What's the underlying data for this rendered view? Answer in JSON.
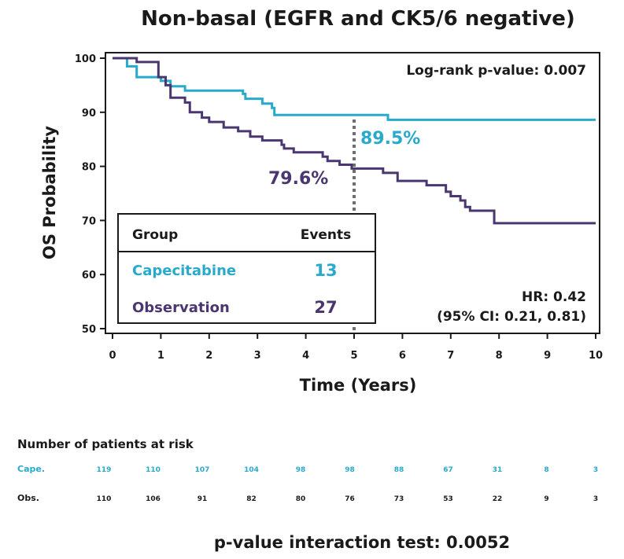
{
  "chart_data": {
    "type": "line",
    "title": "Non-basal (EGFR and CK5/6 negative)",
    "xlabel": "Time (Years)",
    "ylabel": "OS Probability",
    "xlim": [
      0,
      10
    ],
    "ylim": [
      49,
      101
    ],
    "xticks": [
      "0",
      "1",
      "2",
      "3",
      "4",
      "5",
      "6",
      "7",
      "8",
      "9",
      "10"
    ],
    "yticks": [
      "100",
      "90",
      "80",
      "70",
      "60",
      "50"
    ],
    "logrank": "Log-rank p-value: 0.007",
    "hr_line1": "HR: 0.42",
    "hr_line2": "(95% CI: 0.21, 0.81)",
    "reference_x": 5,
    "series": [
      {
        "name": "Capecitabine",
        "color": "#29a9cc",
        "annotation": "89.5%",
        "points": [
          [
            0,
            100
          ],
          [
            0.3,
            98.5
          ],
          [
            0.5,
            96.5
          ],
          [
            1.0,
            95.8
          ],
          [
            1.2,
            94.8
          ],
          [
            1.5,
            94.0
          ],
          [
            2.7,
            93.4
          ],
          [
            2.75,
            92.5
          ],
          [
            3.1,
            91.6
          ],
          [
            3.3,
            90.8
          ],
          [
            3.35,
            89.5
          ],
          [
            5.7,
            88.6
          ],
          [
            10,
            88.6
          ]
        ]
      },
      {
        "name": "Observation",
        "color": "#4a3670",
        "annotation": "79.6%",
        "points": [
          [
            0,
            100
          ],
          [
            0.5,
            99.3
          ],
          [
            0.95,
            96.5
          ],
          [
            1.1,
            95.0
          ],
          [
            1.2,
            92.7
          ],
          [
            1.5,
            91.8
          ],
          [
            1.6,
            90.0
          ],
          [
            1.85,
            89.0
          ],
          [
            2.0,
            88.2
          ],
          [
            2.3,
            87.2
          ],
          [
            2.6,
            86.5
          ],
          [
            2.85,
            85.5
          ],
          [
            3.1,
            84.8
          ],
          [
            3.5,
            84.0
          ],
          [
            3.55,
            83.3
          ],
          [
            3.75,
            82.6
          ],
          [
            4.35,
            81.8
          ],
          [
            4.45,
            81.0
          ],
          [
            4.7,
            80.3
          ],
          [
            4.95,
            79.6
          ],
          [
            5.6,
            78.8
          ],
          [
            5.9,
            77.3
          ],
          [
            6.5,
            76.5
          ],
          [
            6.9,
            75.3
          ],
          [
            7.0,
            74.5
          ],
          [
            7.2,
            73.7
          ],
          [
            7.3,
            72.5
          ],
          [
            7.4,
            71.8
          ],
          [
            7.9,
            69.5
          ],
          [
            10,
            69.5
          ]
        ]
      }
    ]
  },
  "legend": {
    "header_group": "Group",
    "header_events": "Events",
    "rows": [
      {
        "name": "Capecitabine",
        "events": "13",
        "color": "#29a9cc"
      },
      {
        "name": "Observation",
        "events": "27",
        "color": "#4a3670"
      }
    ]
  },
  "risk_table": {
    "title": "Number of patients at risk",
    "rows": [
      {
        "label": "Cape.",
        "color": "#29a9cc",
        "values": [
          "119",
          "110",
          "107",
          "104",
          "98",
          "98",
          "88",
          "67",
          "31",
          "8",
          "3"
        ]
      },
      {
        "label": "Obs.",
        "color": "#1a1a1a",
        "values": [
          "110",
          "106",
          "91",
          "82",
          "80",
          "76",
          "73",
          "53",
          "22",
          "9",
          "3"
        ]
      }
    ]
  },
  "footer": "p-value interaction test: 0.0052"
}
